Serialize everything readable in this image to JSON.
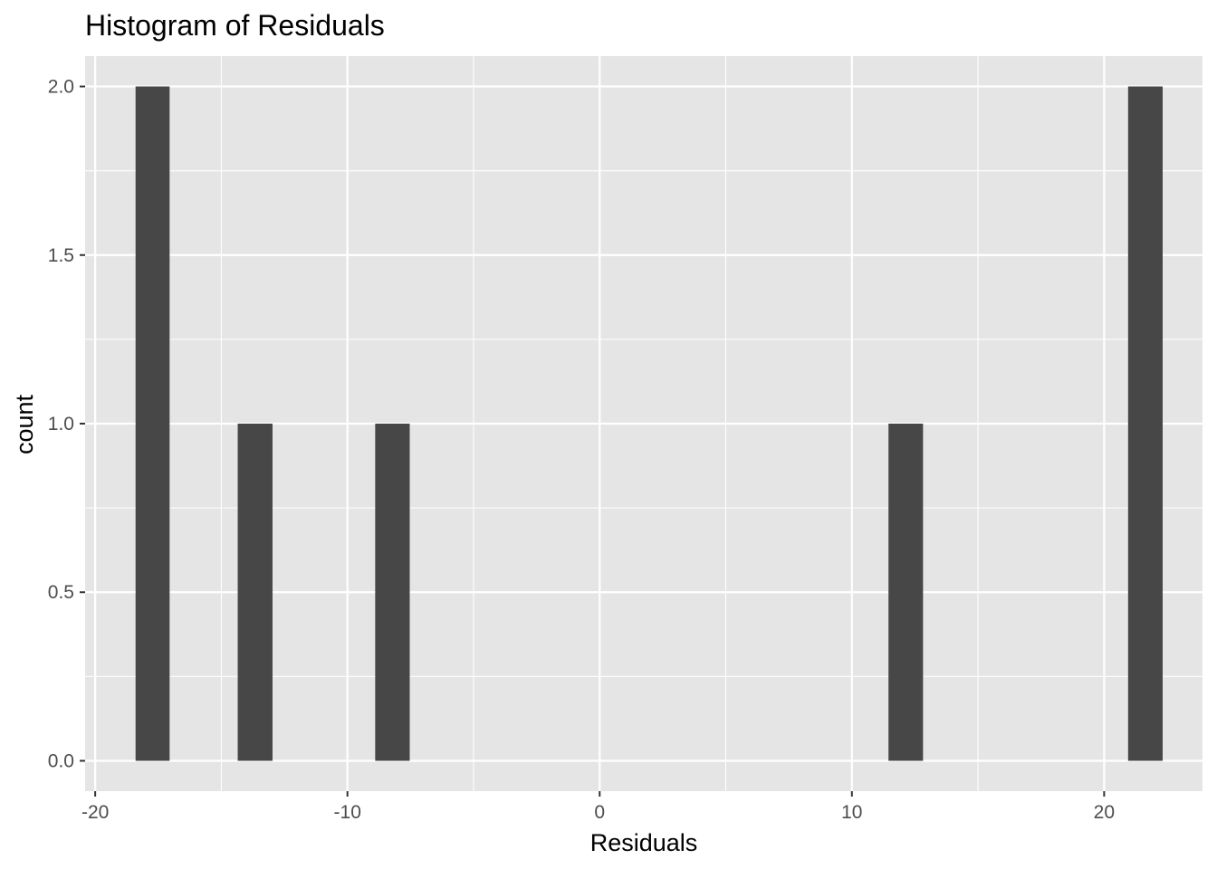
{
  "chart_data": {
    "type": "bar",
    "title": "Histogram of Residuals",
    "xlabel": "Residuals",
    "ylabel": "count",
    "xlim": [
      -20.4,
      23.9
    ],
    "ylim": [
      -0.09,
      2.09
    ],
    "x_ticks": [
      -20,
      -10,
      0,
      10,
      20
    ],
    "x_tick_labels": [
      "-20",
      "-10",
      "0",
      "10",
      "20"
    ],
    "y_ticks": [
      0,
      0.5,
      1,
      1.5,
      2
    ],
    "y_tick_labels": [
      "0.0",
      "0.5",
      "1.0",
      "1.5",
      "2.0"
    ],
    "bins": [
      {
        "start": -18.4,
        "end": -17.05,
        "count": 2
      },
      {
        "start": -14.35,
        "end": -12.97,
        "count": 1
      },
      {
        "start": -8.9,
        "end": -7.53,
        "count": 1
      },
      {
        "start": 11.45,
        "end": 12.82,
        "count": 1
      },
      {
        "start": 20.95,
        "end": 22.32,
        "count": 2
      }
    ],
    "grid": true,
    "colors": {
      "panel": "#e5e5e5",
      "grid": "#ffffff",
      "bar": "#474747",
      "tick": "#333333"
    }
  }
}
